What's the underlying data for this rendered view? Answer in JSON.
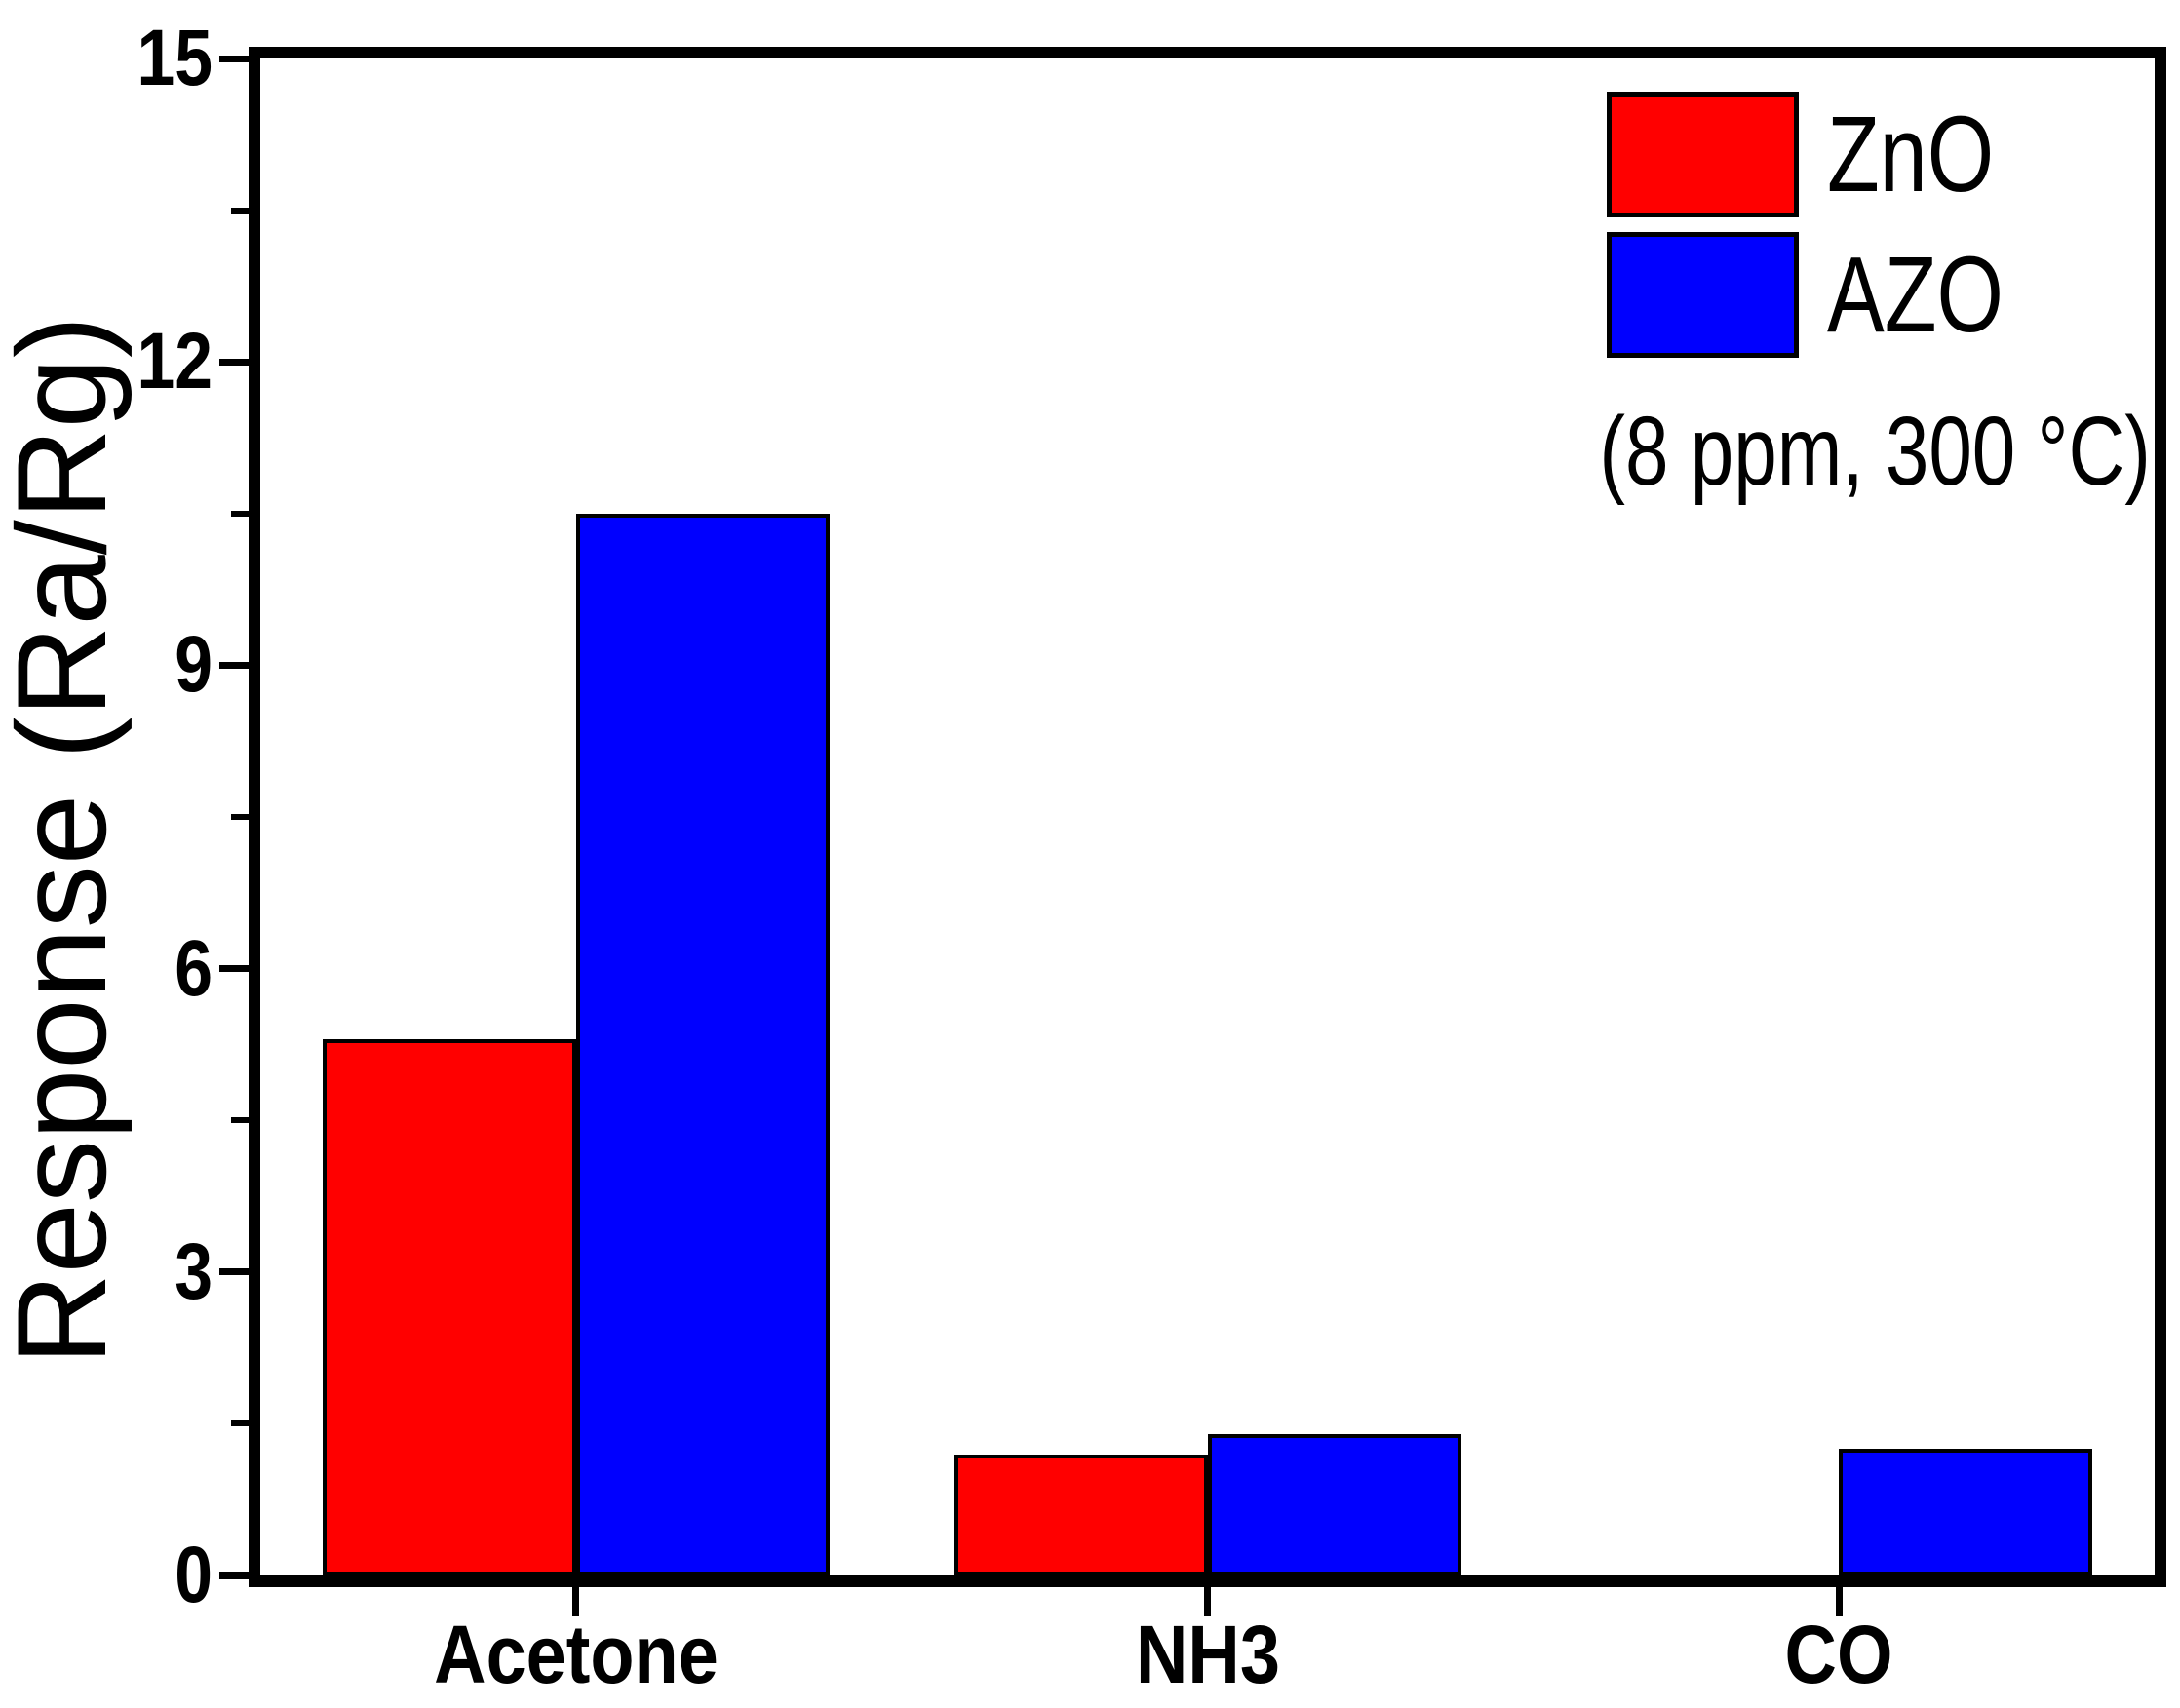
{
  "chart_data": {
    "type": "bar",
    "title": "",
    "categories": [
      "Acetone",
      "NH3",
      "CO"
    ],
    "series": [
      {
        "name": "ZnO",
        "color": "#FF0000",
        "values": [
          5.3,
          1.2,
          0
        ]
      },
      {
        "name": "AZO",
        "color": "#0000FF",
        "values": [
          10.5,
          1.4,
          1.25
        ]
      }
    ],
    "xlabel": "",
    "ylabel": "Response (Ra/Rg)",
    "ylim": [
      0,
      15
    ],
    "yticks": [
      0,
      3,
      6,
      9,
      12,
      15
    ],
    "minor_tick_step": 1.5,
    "grid": "off",
    "legend": {
      "position": "top-right",
      "note": "(8 ppm, 300 °C)"
    },
    "colors": {
      "axis": "#000000",
      "text": "#000000",
      "background": "#FFFFFF"
    }
  }
}
